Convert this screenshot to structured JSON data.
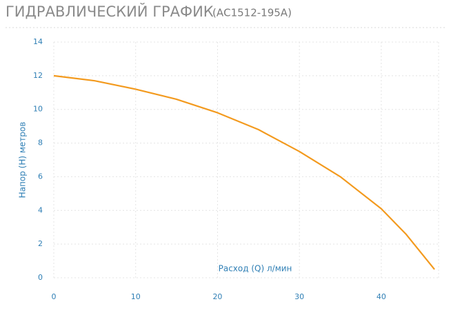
{
  "chart_data": {
    "type": "line",
    "title": "ГИДРАВЛИЧЕСКИЙ ГРАФИК",
    "subtitle": "(АС1512-195А)",
    "x_label": "Расход (Q) л/мин",
    "y_label": "Напор (H) метров",
    "series": [
      {
        "color": "#f39a1e",
        "x": [
          0,
          5,
          10,
          15,
          20,
          25,
          30,
          35,
          40,
          43,
          46.5
        ],
        "values": [
          12,
          11.7,
          11.2,
          10.6,
          9.8,
          8.8,
          7.5,
          6,
          4.1,
          2.6,
          0.5
        ]
      }
    ],
    "xlim": [
      0,
      47
    ],
    "xticks": [
      0,
      10,
      20,
      30,
      40
    ],
    "ylim": [
      0,
      14
    ],
    "yticks": [
      0,
      2,
      4,
      6,
      8,
      10,
      12,
      14
    ],
    "grid": true
  }
}
